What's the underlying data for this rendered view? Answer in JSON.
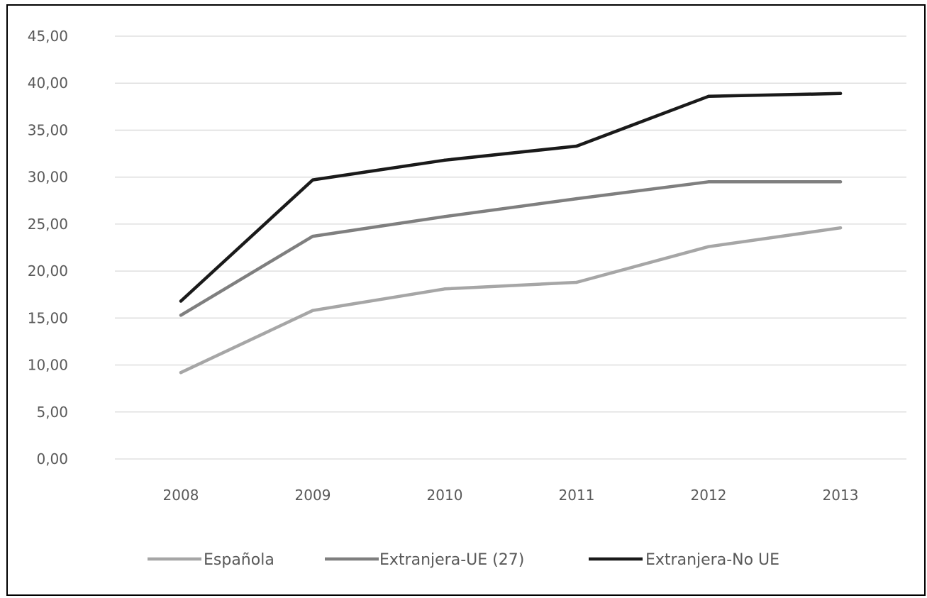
{
  "chart_data": {
    "type": "line",
    "title": "",
    "xlabel": "",
    "ylabel": "",
    "categories": [
      "2008",
      "2009",
      "2010",
      "2011",
      "2012",
      "2013"
    ],
    "y_ticks": [
      "0,00",
      "5,00",
      "10,00",
      "15,00",
      "20,00",
      "25,00",
      "30,00",
      "35,00",
      "40,00",
      "45,00"
    ],
    "ylim": [
      0,
      45
    ],
    "grid": true,
    "legend_position": "bottom",
    "series": [
      {
        "name": "Española",
        "color": "#a6a6a6",
        "values": [
          9.2,
          15.8,
          18.1,
          18.8,
          22.6,
          24.6
        ]
      },
      {
        "name": "Extranjera-UE (27)",
        "color": "#7f7f7f",
        "values": [
          15.3,
          23.7,
          25.8,
          27.7,
          29.5,
          29.5
        ]
      },
      {
        "name": "Extranjera-No UE",
        "color": "#1a1a1a",
        "values": [
          16.8,
          29.7,
          31.8,
          33.3,
          38.6,
          38.9
        ]
      }
    ]
  }
}
